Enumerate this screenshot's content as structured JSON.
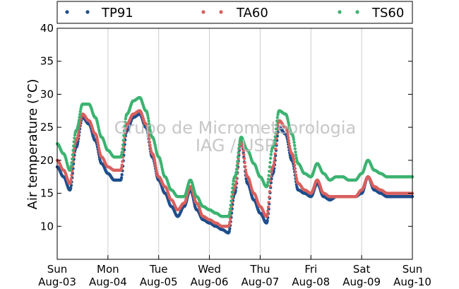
{
  "chart_data": {
    "type": "scatter",
    "title": "",
    "xlabel": "",
    "ylabel": "Air temperature (°C)",
    "ylim": [
      5,
      40
    ],
    "yticks": [
      10,
      15,
      20,
      25,
      30,
      35,
      40
    ],
    "xlim_days": [
      0,
      7
    ],
    "x_ticks": [
      {
        "day": "Sun",
        "date": "Aug-03"
      },
      {
        "day": "Mon",
        "date": "Aug-04"
      },
      {
        "day": "Tue",
        "date": "Aug-05"
      },
      {
        "day": "Wed",
        "date": "Aug-06"
      },
      {
        "day": "Thu",
        "date": "Aug-07"
      },
      {
        "day": "Fri",
        "date": "Aug-08"
      },
      {
        "day": "Sat",
        "date": "Aug-09"
      },
      {
        "day": "Sun",
        "date": "Aug-10"
      }
    ],
    "grid": "vertical",
    "legend_position": "top",
    "watermark": [
      "Grupo de Micrometeorologia",
      "IAG / USP"
    ],
    "series": [
      {
        "name": "TP91",
        "color": "#1f4e8c",
        "x": [
          "Aug-03 00:00",
          "Aug-03 03:00",
          "Aug-03 06:00",
          "Aug-03 09:00",
          "Aug-03 12:00",
          "Aug-03 15:00",
          "Aug-03 18:00",
          "Aug-03 21:00",
          "Aug-04 00:00",
          "Aug-04 03:00",
          "Aug-04 06:00",
          "Aug-04 09:00",
          "Aug-04 12:00",
          "Aug-04 15:00",
          "Aug-04 18:00",
          "Aug-04 21:00",
          "Aug-05 00:00",
          "Aug-05 03:00",
          "Aug-05 06:00",
          "Aug-05 09:00",
          "Aug-05 12:00",
          "Aug-05 15:00",
          "Aug-05 18:00",
          "Aug-05 21:00",
          "Aug-06 00:00",
          "Aug-06 03:00",
          "Aug-06 06:00",
          "Aug-06 09:00",
          "Aug-06 12:00",
          "Aug-06 15:00",
          "Aug-06 18:00",
          "Aug-06 21:00",
          "Aug-07 00:00",
          "Aug-07 03:00",
          "Aug-07 06:00",
          "Aug-07 09:00",
          "Aug-07 12:00",
          "Aug-07 15:00",
          "Aug-07 18:00",
          "Aug-07 21:00",
          "Aug-08 00:00",
          "Aug-08 03:00",
          "Aug-08 06:00",
          "Aug-08 09:00",
          "Aug-08 12:00",
          "Aug-08 15:00",
          "Aug-08 18:00",
          "Aug-08 21:00",
          "Aug-09 00:00",
          "Aug-09 03:00",
          "Aug-09 06:00",
          "Aug-09 09:00",
          "Aug-09 12:00",
          "Aug-09 15:00",
          "Aug-09 18:00",
          "Aug-09 21:00",
          "Aug-10 00:00"
        ],
        "values": [
          19.0,
          17.5,
          15.5,
          22.0,
          26.5,
          25.5,
          23.0,
          19.5,
          18.0,
          17.0,
          17.0,
          24.5,
          26.5,
          27.0,
          25.0,
          20.5,
          17.0,
          15.0,
          13.0,
          11.5,
          13.0,
          15.5,
          12.5,
          11.0,
          10.5,
          10.0,
          9.5,
          9.0,
          15.0,
          23.0,
          16.5,
          14.0,
          12.0,
          10.5,
          18.0,
          25.0,
          24.0,
          20.0,
          15.5,
          15.0,
          14.5,
          16.5,
          14.5,
          14.0,
          14.5,
          14.5,
          14.5,
          14.5,
          15.0,
          17.5,
          15.5,
          15.0,
          14.5,
          14.5,
          14.5,
          14.5,
          14.5
        ]
      },
      {
        "name": "TA60",
        "color": "#d9605e",
        "x": [
          "Aug-03 00:00",
          "Aug-03 03:00",
          "Aug-03 06:00",
          "Aug-03 09:00",
          "Aug-03 12:00",
          "Aug-03 15:00",
          "Aug-03 18:00",
          "Aug-03 21:00",
          "Aug-04 00:00",
          "Aug-04 03:00",
          "Aug-04 06:00",
          "Aug-04 09:00",
          "Aug-04 12:00",
          "Aug-04 15:00",
          "Aug-04 18:00",
          "Aug-04 21:00",
          "Aug-05 00:00",
          "Aug-05 03:00",
          "Aug-05 06:00",
          "Aug-05 09:00",
          "Aug-05 12:00",
          "Aug-05 15:00",
          "Aug-05 18:00",
          "Aug-05 21:00",
          "Aug-06 00:00",
          "Aug-06 03:00",
          "Aug-06 06:00",
          "Aug-06 09:00",
          "Aug-06 12:00",
          "Aug-06 15:00",
          "Aug-06 18:00",
          "Aug-06 21:00",
          "Aug-07 00:00",
          "Aug-07 03:00",
          "Aug-07 06:00",
          "Aug-07 09:00",
          "Aug-07 12:00",
          "Aug-07 15:00",
          "Aug-07 18:00",
          "Aug-07 21:00",
          "Aug-08 00:00",
          "Aug-08 03:00",
          "Aug-08 06:00",
          "Aug-08 09:00",
          "Aug-08 12:00",
          "Aug-08 15:00",
          "Aug-08 18:00",
          "Aug-08 21:00",
          "Aug-09 00:00",
          "Aug-09 03:00",
          "Aug-09 06:00",
          "Aug-09 09:00",
          "Aug-09 12:00",
          "Aug-09 15:00",
          "Aug-09 18:00",
          "Aug-09 21:00",
          "Aug-10 00:00"
        ],
        "values": [
          20.0,
          18.5,
          16.5,
          23.0,
          27.0,
          26.0,
          24.0,
          20.5,
          19.0,
          18.5,
          18.5,
          25.5,
          27.0,
          27.5,
          25.5,
          21.0,
          17.5,
          16.0,
          14.0,
          12.5,
          13.5,
          16.0,
          13.5,
          11.5,
          11.0,
          10.5,
          10.0,
          10.0,
          16.0,
          23.0,
          17.5,
          15.0,
          13.0,
          11.5,
          19.0,
          26.0,
          25.0,
          21.0,
          16.5,
          15.5,
          15.0,
          17.0,
          15.0,
          14.5,
          14.5,
          14.5,
          14.5,
          14.5,
          15.5,
          17.5,
          16.0,
          15.5,
          15.0,
          15.0,
          15.0,
          15.0,
          15.0
        ]
      },
      {
        "name": "TS60",
        "color": "#3cb371",
        "x": [
          "Aug-03 00:00",
          "Aug-03 03:00",
          "Aug-03 06:00",
          "Aug-03 09:00",
          "Aug-03 12:00",
          "Aug-03 15:00",
          "Aug-03 18:00",
          "Aug-03 21:00",
          "Aug-04 00:00",
          "Aug-04 03:00",
          "Aug-04 06:00",
          "Aug-04 09:00",
          "Aug-04 12:00",
          "Aug-04 15:00",
          "Aug-04 18:00",
          "Aug-04 21:00",
          "Aug-05 00:00",
          "Aug-05 03:00",
          "Aug-05 06:00",
          "Aug-05 09:00",
          "Aug-05 12:00",
          "Aug-05 15:00",
          "Aug-05 18:00",
          "Aug-05 21:00",
          "Aug-06 00:00",
          "Aug-06 03:00",
          "Aug-06 06:00",
          "Aug-06 09:00",
          "Aug-06 12:00",
          "Aug-06 15:00",
          "Aug-06 18:00",
          "Aug-06 21:00",
          "Aug-07 00:00",
          "Aug-07 03:00",
          "Aug-07 06:00",
          "Aug-07 09:00",
          "Aug-07 12:00",
          "Aug-07 15:00",
          "Aug-07 18:00",
          "Aug-07 21:00",
          "Aug-08 00:00",
          "Aug-08 03:00",
          "Aug-08 06:00",
          "Aug-08 09:00",
          "Aug-08 12:00",
          "Aug-08 15:00",
          "Aug-08 18:00",
          "Aug-08 21:00",
          "Aug-09 00:00",
          "Aug-09 03:00",
          "Aug-09 06:00",
          "Aug-09 09:00",
          "Aug-09 12:00",
          "Aug-09 15:00",
          "Aug-09 18:00",
          "Aug-09 21:00",
          "Aug-10 00:00"
        ],
        "values": [
          22.5,
          21.0,
          18.5,
          24.5,
          28.5,
          28.5,
          26.5,
          23.5,
          21.5,
          20.5,
          20.5,
          27.0,
          29.0,
          29.5,
          27.5,
          23.5,
          20.5,
          17.5,
          15.5,
          14.5,
          14.5,
          17.0,
          14.5,
          13.0,
          12.5,
          12.0,
          11.5,
          11.5,
          17.5,
          23.5,
          21.5,
          19.5,
          17.5,
          16.0,
          22.0,
          27.5,
          27.0,
          24.0,
          19.5,
          18.0,
          17.5,
          19.5,
          18.0,
          17.0,
          17.5,
          17.5,
          17.0,
          17.0,
          18.0,
          20.0,
          18.5,
          18.0,
          17.5,
          17.5,
          17.5,
          17.5,
          17.5
        ]
      }
    ]
  }
}
